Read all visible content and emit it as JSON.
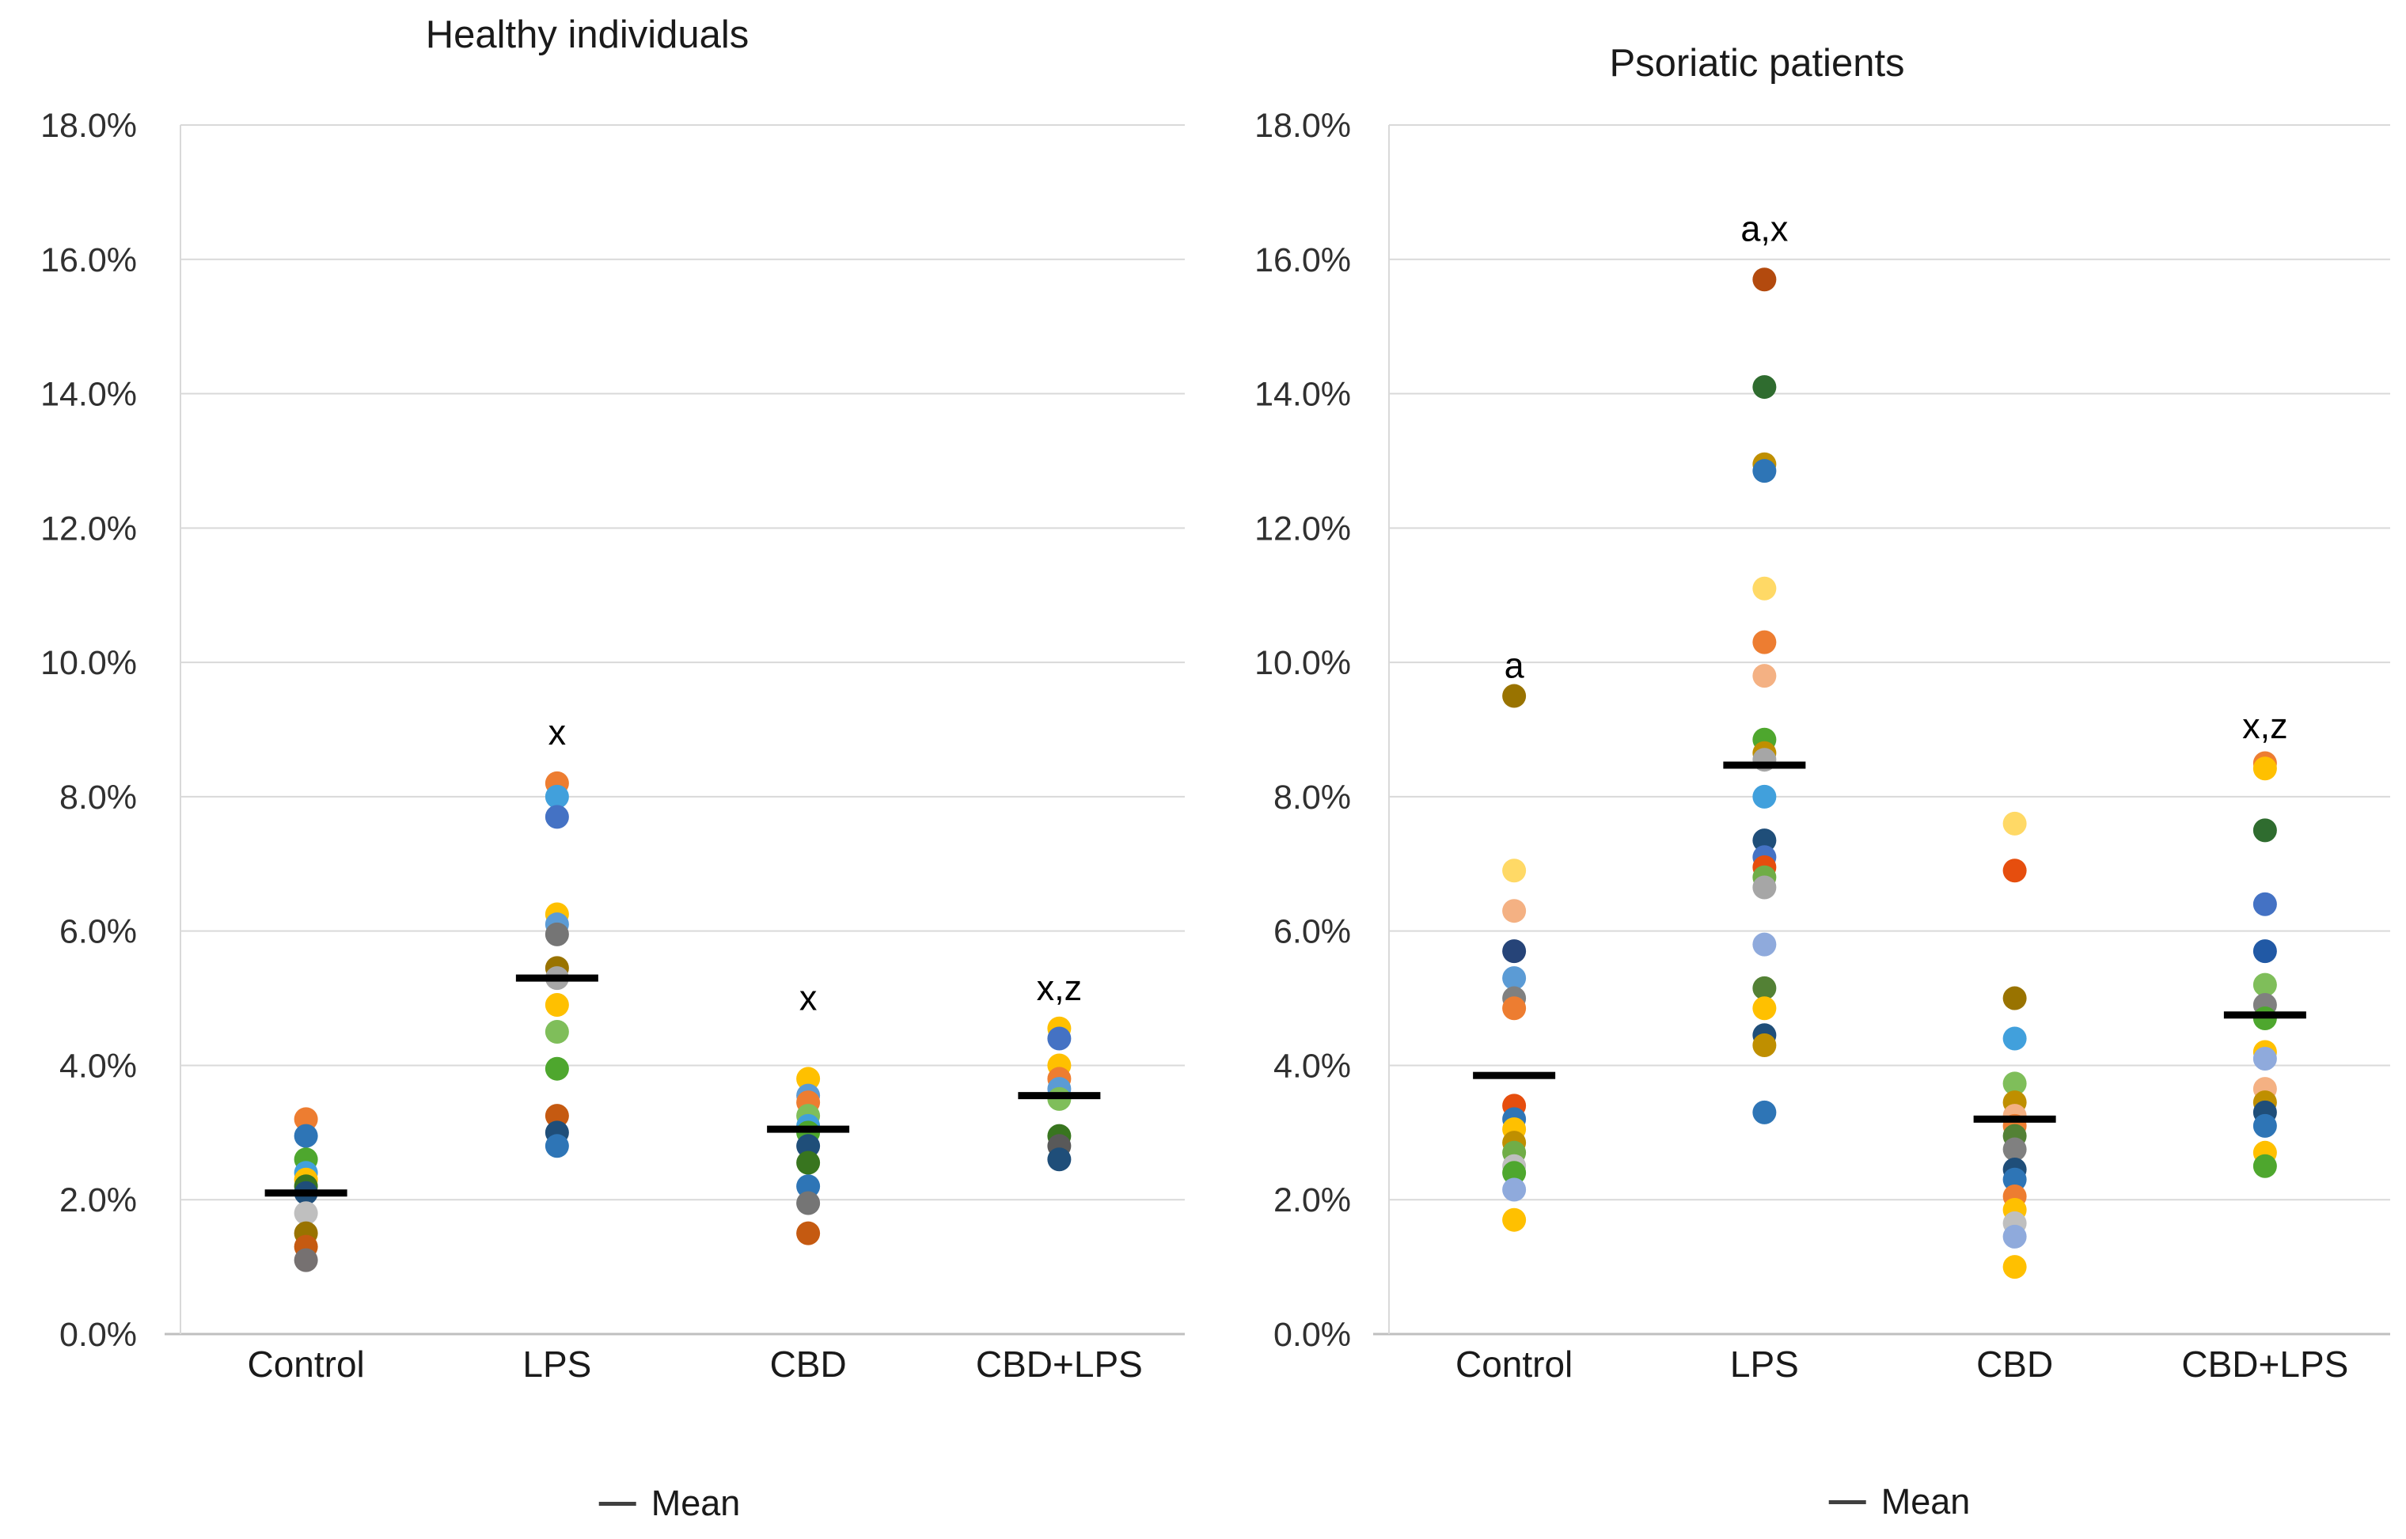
{
  "chart_data": {
    "type": "scatter",
    "description": "Dot plots of individual values with mean dashes, two panels",
    "y_axis": {
      "min": 0,
      "max": 18,
      "step": 2,
      "unit": "%",
      "tick_labels": [
        "0.0%",
        "2.0%",
        "4.0%",
        "6.0%",
        "8.0%",
        "10.0%",
        "12.0%",
        "14.0%",
        "16.0%",
        "18.0%"
      ],
      "grid": true
    },
    "categories": [
      "Control",
      "LPS",
      "CBD",
      "CBD+LPS"
    ],
    "legend_position": "bottom",
    "panels": [
      {
        "title": "Healthy individuals",
        "legend_label": "Mean",
        "groups": [
          {
            "label": "Control",
            "mean": 2.1,
            "annotation": null,
            "points": [
              {
                "v": 3.2,
                "c": "#ED7D31"
              },
              {
                "v": 2.95,
                "c": "#2E75B6"
              },
              {
                "v": 2.6,
                "c": "#4EA72E"
              },
              {
                "v": 2.4,
                "c": "#41A0DC"
              },
              {
                "v": 2.3,
                "c": "#FFC000"
              },
              {
                "v": 2.2,
                "c": "#38751F"
              },
              {
                "v": 2.1,
                "c": "#1F4E79"
              },
              {
                "v": 1.8,
                "c": "#BFBFBF"
              },
              {
                "v": 1.5,
                "c": "#997300"
              },
              {
                "v": 1.3,
                "c": "#C55A11"
              },
              {
                "v": 1.1,
                "c": "#767171"
              }
            ]
          },
          {
            "label": "LPS",
            "mean": 5.3,
            "annotation": {
              "text": "x",
              "v": 8.95
            },
            "points": [
              {
                "v": 8.2,
                "c": "#ED7D31"
              },
              {
                "v": 8.0,
                "c": "#41A0DC"
              },
              {
                "v": 7.7,
                "c": "#4472C4"
              },
              {
                "v": 6.25,
                "c": "#FFC000"
              },
              {
                "v": 6.1,
                "c": "#5B9BD5"
              },
              {
                "v": 5.95,
                "c": "#757575"
              },
              {
                "v": 5.45,
                "c": "#997300"
              },
              {
                "v": 5.3,
                "c": "#A6A6A6"
              },
              {
                "v": 4.9,
                "c": "#FFC000"
              },
              {
                "v": 4.5,
                "c": "#7FBE5A"
              },
              {
                "v": 3.95,
                "c": "#4EA72E"
              },
              {
                "v": 3.25,
                "c": "#C55A11"
              },
              {
                "v": 3.0,
                "c": "#1F4E79"
              },
              {
                "v": 2.8,
                "c": "#2E75B6"
              }
            ]
          },
          {
            "label": "CBD",
            "mean": 3.05,
            "annotation": {
              "text": "x",
              "v": 5.0
            },
            "points": [
              {
                "v": 3.8,
                "c": "#FFC000"
              },
              {
                "v": 3.55,
                "c": "#5B9BD5"
              },
              {
                "v": 3.45,
                "c": "#ED7D31"
              },
              {
                "v": 3.25,
                "c": "#7FBE5A"
              },
              {
                "v": 3.1,
                "c": "#41A0DC"
              },
              {
                "v": 3.0,
                "c": "#4EA72E"
              },
              {
                "v": 2.8,
                "c": "#1F4E79"
              },
              {
                "v": 2.55,
                "c": "#38751F"
              },
              {
                "v": 2.2,
                "c": "#2E75B6"
              },
              {
                "v": 1.95,
                "c": "#757575"
              },
              {
                "v": 1.5,
                "c": "#C55A11"
              }
            ]
          },
          {
            "label": "CBD+LPS",
            "mean": 3.55,
            "annotation": {
              "text": "x,z",
              "v": 5.15
            },
            "points": [
              {
                "v": 4.55,
                "c": "#FFC000"
              },
              {
                "v": 4.4,
                "c": "#4472C4"
              },
              {
                "v": 4.0,
                "c": "#FFC000"
              },
              {
                "v": 3.8,
                "c": "#ED7D31"
              },
              {
                "v": 3.65,
                "c": "#5B9BD5"
              },
              {
                "v": 3.5,
                "c": "#7FBE5A"
              },
              {
                "v": 2.95,
                "c": "#38751F"
              },
              {
                "v": 2.8,
                "c": "#595959"
              },
              {
                "v": 2.6,
                "c": "#1F4E79"
              }
            ]
          }
        ]
      },
      {
        "title": "Psoriatic patients",
        "legend_label": "Mean",
        "groups": [
          {
            "label": "Control",
            "mean": 3.85,
            "annotation": {
              "text": "a",
              "v": 9.95
            },
            "points": [
              {
                "v": 9.5,
                "c": "#997300"
              },
              {
                "v": 6.9,
                "c": "#FFD966"
              },
              {
                "v": 6.3,
                "c": "#F4B183"
              },
              {
                "v": 5.7,
                "c": "#264478"
              },
              {
                "v": 5.3,
                "c": "#5B9BD5"
              },
              {
                "v": 5.0,
                "c": "#808080"
              },
              {
                "v": 4.85,
                "c": "#ED7D31"
              },
              {
                "v": 3.4,
                "c": "#E64E0E"
              },
              {
                "v": 3.2,
                "c": "#2E75B6"
              },
              {
                "v": 3.05,
                "c": "#FFC000"
              },
              {
                "v": 2.85,
                "c": "#BF8F00"
              },
              {
                "v": 2.7,
                "c": "#70AD47"
              },
              {
                "v": 2.5,
                "c": "#BFBFBF"
              },
              {
                "v": 2.4,
                "c": "#4EA72E"
              },
              {
                "v": 2.15,
                "c": "#8FAADC"
              },
              {
                "v": 1.7,
                "c": "#FFC000"
              }
            ]
          },
          {
            "label": "LPS",
            "mean": 8.47,
            "annotation": {
              "text": "a,x",
              "v": 16.45
            },
            "points": [
              {
                "v": 15.7,
                "c": "#B34A0E"
              },
              {
                "v": 14.1,
                "c": "#2F6C2F"
              },
              {
                "v": 12.95,
                "c": "#BF8F00"
              },
              {
                "v": 12.85,
                "c": "#2E75B6"
              },
              {
                "v": 11.1,
                "c": "#FFD966"
              },
              {
                "v": 10.3,
                "c": "#ED7D31"
              },
              {
                "v": 9.8,
                "c": "#F4B183"
              },
              {
                "v": 8.85,
                "c": "#4EA72E"
              },
              {
                "v": 8.65,
                "c": "#BF8F00"
              },
              {
                "v": 8.55,
                "c": "#A6A6A6"
              },
              {
                "v": 8.0,
                "c": "#41A0DC"
              },
              {
                "v": 7.35,
                "c": "#1F4E79"
              },
              {
                "v": 7.1,
                "c": "#4472C4"
              },
              {
                "v": 6.95,
                "c": "#E64E0E"
              },
              {
                "v": 6.8,
                "c": "#70AD47"
              },
              {
                "v": 6.65,
                "c": "#A6A6A6"
              },
              {
                "v": 5.8,
                "c": "#8FAADC"
              },
              {
                "v": 5.15,
                "c": "#538135"
              },
              {
                "v": 4.85,
                "c": "#FFC000"
              },
              {
                "v": 4.45,
                "c": "#1F4E79"
              },
              {
                "v": 4.3,
                "c": "#BF8F00"
              },
              {
                "v": 3.3,
                "c": "#2E75B6"
              }
            ]
          },
          {
            "label": "CBD",
            "mean": 3.2,
            "annotation": null,
            "points": [
              {
                "v": 7.6,
                "c": "#FFD966"
              },
              {
                "v": 6.9,
                "c": "#E64E0E"
              },
              {
                "v": 5.0,
                "c": "#997300"
              },
              {
                "v": 4.4,
                "c": "#41A0DC"
              },
              {
                "v": 3.73,
                "c": "#7FBE5A"
              },
              {
                "v": 3.45,
                "c": "#BF8F00"
              },
              {
                "v": 3.25,
                "c": "#F4B183"
              },
              {
                "v": 3.1,
                "c": "#ED7D31"
              },
              {
                "v": 2.95,
                "c": "#538135"
              },
              {
                "v": 2.75,
                "c": "#808080"
              },
              {
                "v": 2.45,
                "c": "#1F4E79"
              },
              {
                "v": 2.3,
                "c": "#2E75B6"
              },
              {
                "v": 2.05,
                "c": "#ED7D31"
              },
              {
                "v": 1.85,
                "c": "#FFC000"
              },
              {
                "v": 1.65,
                "c": "#BFBFBF"
              },
              {
                "v": 1.45,
                "c": "#8FAADC"
              },
              {
                "v": 1.0,
                "c": "#FFC000"
              }
            ]
          },
          {
            "label": "CBD+LPS",
            "mean": 4.75,
            "annotation": {
              "text": "x,z",
              "v": 9.05
            },
            "points": [
              {
                "v": 8.5,
                "c": "#ED7D31"
              },
              {
                "v": 8.42,
                "c": "#FFC000"
              },
              {
                "v": 7.5,
                "c": "#2F6C2F"
              },
              {
                "v": 6.4,
                "c": "#4472C4"
              },
              {
                "v": 5.7,
                "c": "#2159A5"
              },
              {
                "v": 5.2,
                "c": "#7FBE5A"
              },
              {
                "v": 4.9,
                "c": "#808080"
              },
              {
                "v": 4.7,
                "c": "#4EA72E"
              },
              {
                "v": 4.2,
                "c": "#FFC000"
              },
              {
                "v": 4.1,
                "c": "#8FAADC"
              },
              {
                "v": 3.65,
                "c": "#F4B183"
              },
              {
                "v": 3.45,
                "c": "#BF8F00"
              },
              {
                "v": 3.3,
                "c": "#1F4E79"
              },
              {
                "v": 3.1,
                "c": "#2E75B6"
              },
              {
                "v": 2.7,
                "c": "#FFC000"
              },
              {
                "v": 2.5,
                "c": "#4EA72E"
              }
            ]
          }
        ]
      }
    ],
    "style": {
      "gridline_color": "#D9D9D9",
      "axis_line_color": "#BFBFBF",
      "mean_dash_color": "#000000",
      "tick_label_color": "#303030",
      "category_label_color": "#1a1a1a",
      "annotation_color": "#000000"
    }
  }
}
